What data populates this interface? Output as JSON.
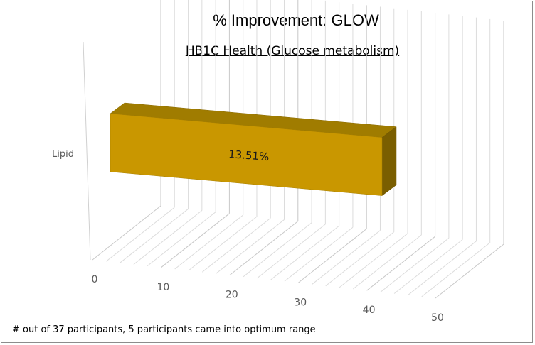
{
  "chart_data": {
    "type": "bar",
    "orientation": "horizontal",
    "style": "3d",
    "title": "% Improvement:  GLOW",
    "subtitle": "HB1C  Health (Glucose metabolism)",
    "categories": [
      "Lipid"
    ],
    "values": [
      37
    ],
    "data_labels": [
      "13.51%"
    ],
    "x_ticks": [
      0,
      10,
      20,
      30,
      40,
      50
    ],
    "xlim": [
      0,
      50
    ],
    "grid": true,
    "bar_color": "#c99700",
    "footnote": "# out of 37 participants, 5 participants came into optimum range"
  }
}
